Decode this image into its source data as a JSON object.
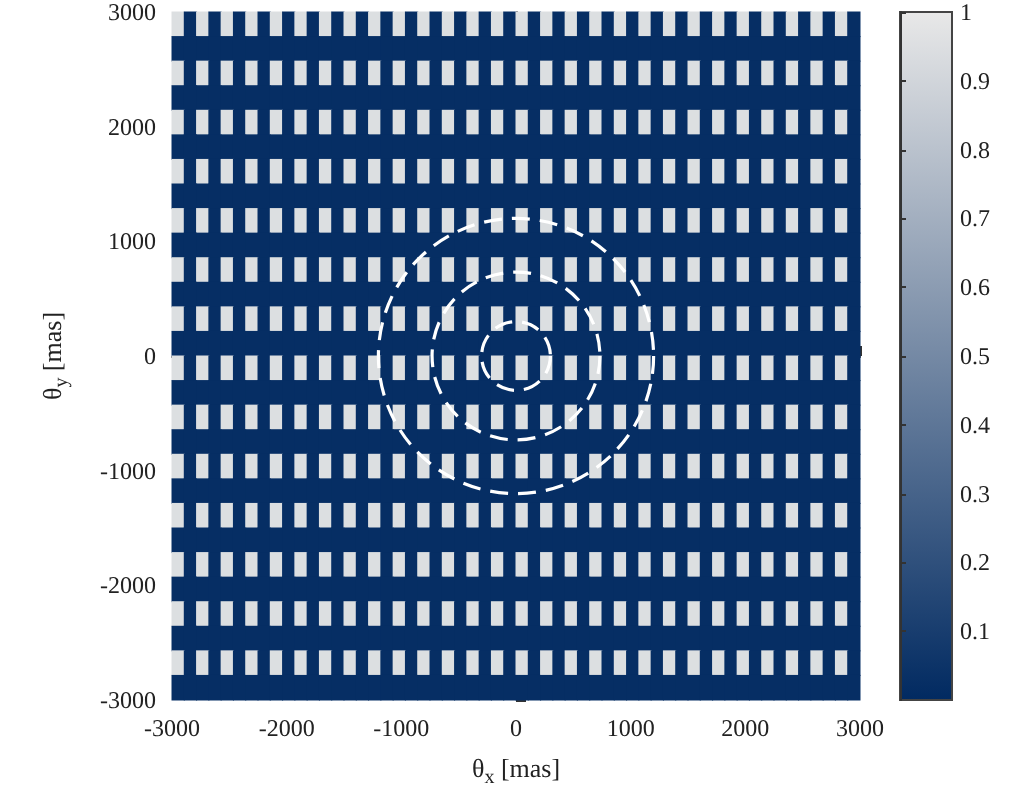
{
  "chart_data": {
    "type": "heatmap",
    "xlabel": "θ$_{x}$ [mas]",
    "ylabel": "θ$_{y}$ [mas]",
    "xlim": [
      -3000,
      3000
    ],
    "ylim": [
      -3000,
      3000
    ],
    "xticks": [
      -3000,
      -2000,
      -1000,
      0,
      1000,
      2000,
      3000
    ],
    "yticks": [
      -3000,
      -2000,
      -1000,
      0,
      1000,
      2000,
      3000
    ],
    "clim": [
      0,
      1
    ],
    "cticks": [
      0.1,
      0.2,
      0.3,
      0.4,
      0.5,
      0.6,
      0.7,
      0.8,
      0.9,
      1
    ],
    "cells": [
      [
        0.95,
        0.02,
        0.95,
        0.02,
        0.95,
        0.02,
        0.95,
        0.02,
        0.95,
        0.02,
        0.95,
        0.02,
        0.95,
        0.02,
        0.95,
        0.02,
        0.95,
        0.02,
        0.95,
        0.02,
        0.95,
        0.02,
        0.95,
        0.02,
        0.95,
        0.02,
        0.95,
        0.02,
        0.95,
        0.02,
        0.95,
        0.02,
        0.95,
        0.02,
        0.95,
        0.02,
        0.95,
        0.02,
        0.95,
        0.02,
        0.95,
        0.02,
        0.95,
        0.02,
        0.95,
        0.02,
        0.95,
        0.02,
        0.95,
        0.02,
        0.95,
        0.02,
        0.95,
        0.02,
        0.95,
        0.02
      ],
      [
        0.02,
        0.02,
        0.02,
        0.02,
        0.02,
        0.02,
        0.02,
        0.02,
        0.02,
        0.02,
        0.02,
        0.02,
        0.02,
        0.02,
        0.02,
        0.02,
        0.02,
        0.02,
        0.02,
        0.02,
        0.02,
        0.02,
        0.02,
        0.02,
        0.02,
        0.02,
        0.02,
        0.02,
        0.02,
        0.02,
        0.02,
        0.02,
        0.02,
        0.02,
        0.02,
        0.02,
        0.02,
        0.02,
        0.02,
        0.02,
        0.02,
        0.02,
        0.02,
        0.02,
        0.02,
        0.02,
        0.02,
        0.02,
        0.02,
        0.02,
        0.02,
        0.02,
        0.02,
        0.02,
        0.02,
        0.02
      ],
      [
        0.95,
        0.02,
        0.95,
        0.02,
        0.95,
        0.02,
        0.95,
        0.02,
        0.95,
        0.02,
        0.95,
        0.02,
        0.95,
        0.02,
        0.95,
        0.02,
        0.95,
        0.02,
        0.95,
        0.02,
        0.95,
        0.02,
        0.95,
        0.02,
        0.95,
        0.02,
        0.95,
        0.02,
        0.95,
        0.02,
        0.95,
        0.02,
        0.95,
        0.02,
        0.95,
        0.02,
        0.95,
        0.02,
        0.95,
        0.02,
        0.95,
        0.02,
        0.95,
        0.02,
        0.95,
        0.02,
        0.95,
        0.02,
        0.95,
        0.02,
        0.95,
        0.02,
        0.95,
        0.02,
        0.95,
        0.02
      ],
      [
        0.02,
        0.02,
        0.02,
        0.02,
        0.02,
        0.02,
        0.02,
        0.02,
        0.02,
        0.02,
        0.02,
        0.02,
        0.02,
        0.02,
        0.02,
        0.02,
        0.02,
        0.02,
        0.02,
        0.02,
        0.02,
        0.02,
        0.02,
        0.02,
        0.02,
        0.02,
        0.02,
        0.02,
        0.02,
        0.02,
        0.02,
        0.02,
        0.02,
        0.02,
        0.02,
        0.02,
        0.02,
        0.02,
        0.02,
        0.02,
        0.02,
        0.02,
        0.02,
        0.02,
        0.02,
        0.02,
        0.02,
        0.02,
        0.02,
        0.02,
        0.02,
        0.02,
        0.02,
        0.02,
        0.02,
        0.02
      ],
      [
        0.95,
        0.02,
        0.95,
        0.02,
        0.95,
        0.02,
        0.95,
        0.02,
        0.95,
        0.02,
        0.95,
        0.02,
        0.95,
        0.02,
        0.95,
        0.02,
        0.95,
        0.02,
        0.95,
        0.02,
        0.95,
        0.02,
        0.95,
        0.02,
        0.95,
        0.02,
        0.95,
        0.02,
        0.95,
        0.02,
        0.95,
        0.02,
        0.95,
        0.02,
        0.95,
        0.02,
        0.95,
        0.02,
        0.95,
        0.02,
        0.95,
        0.02,
        0.95,
        0.02,
        0.95,
        0.02,
        0.95,
        0.02,
        0.95,
        0.02,
        0.95,
        0.02,
        0.95,
        0.02,
        0.95,
        0.02
      ],
      [
        0.02,
        0.02,
        0.02,
        0.02,
        0.02,
        0.02,
        0.02,
        0.02,
        0.02,
        0.02,
        0.02,
        0.02,
        0.02,
        0.02,
        0.02,
        0.02,
        0.02,
        0.02,
        0.02,
        0.02,
        0.02,
        0.02,
        0.02,
        0.02,
        0.02,
        0.02,
        0.02,
        0.02,
        0.02,
        0.02,
        0.02,
        0.02,
        0.02,
        0.02,
        0.02,
        0.02,
        0.02,
        0.02,
        0.02,
        0.02,
        0.02,
        0.02,
        0.02,
        0.02,
        0.02,
        0.02,
        0.02,
        0.02,
        0.02,
        0.02,
        0.02,
        0.02,
        0.02,
        0.02,
        0.02,
        0.02
      ],
      [
        0.95,
        0.02,
        0.95,
        0.02,
        0.95,
        0.02,
        0.95,
        0.02,
        0.95,
        0.02,
        0.95,
        0.02,
        0.95,
        0.02,
        0.95,
        0.02,
        0.95,
        0.02,
        0.95,
        0.02,
        0.95,
        0.02,
        0.95,
        0.02,
        0.95,
        0.02,
        0.95,
        0.02,
        0.95,
        0.02,
        0.95,
        0.02,
        0.95,
        0.02,
        0.95,
        0.02,
        0.95,
        0.02,
        0.95,
        0.02,
        0.95,
        0.02,
        0.95,
        0.02,
        0.95,
        0.02,
        0.95,
        0.02,
        0.95,
        0.02,
        0.95,
        0.02,
        0.95,
        0.02,
        0.95,
        0.02
      ],
      [
        0.02,
        0.02,
        0.02,
        0.02,
        0.02,
        0.02,
        0.02,
        0.02,
        0.02,
        0.02,
        0.02,
        0.02,
        0.02,
        0.02,
        0.02,
        0.02,
        0.02,
        0.02,
        0.02,
        0.02,
        0.02,
        0.02,
        0.02,
        0.02,
        0.02,
        0.02,
        0.02,
        0.02,
        0.02,
        0.02,
        0.02,
        0.02,
        0.02,
        0.02,
        0.02,
        0.02,
        0.02,
        0.02,
        0.02,
        0.02,
        0.02,
        0.02,
        0.02,
        0.02,
        0.02,
        0.02,
        0.02,
        0.02,
        0.02,
        0.02,
        0.02,
        0.02,
        0.02,
        0.02,
        0.02,
        0.02
      ],
      [
        0.95,
        0.02,
        0.95,
        0.02,
        0.95,
        0.02,
        0.95,
        0.02,
        0.95,
        0.02,
        0.95,
        0.02,
        0.95,
        0.02,
        0.95,
        0.02,
        0.95,
        0.02,
        0.95,
        0.02,
        0.95,
        0.02,
        0.95,
        0.02,
        0.95,
        0.02,
        0.95,
        0.02,
        0.95,
        0.02,
        0.95,
        0.02,
        0.95,
        0.02,
        0.95,
        0.02,
        0.95,
        0.02,
        0.95,
        0.02,
        0.95,
        0.02,
        0.95,
        0.02,
        0.95,
        0.02,
        0.95,
        0.02,
        0.95,
        0.02,
        0.95,
        0.02,
        0.95,
        0.02,
        0.95,
        0.02
      ],
      [
        0.02,
        0.02,
        0.02,
        0.02,
        0.02,
        0.02,
        0.02,
        0.02,
        0.02,
        0.02,
        0.02,
        0.02,
        0.02,
        0.02,
        0.02,
        0.02,
        0.02,
        0.02,
        0.02,
        0.02,
        0.02,
        0.02,
        0.02,
        0.02,
        0.02,
        0.02,
        0.02,
        0.02,
        0.02,
        0.02,
        0.02,
        0.02,
        0.02,
        0.02,
        0.02,
        0.02,
        0.02,
        0.02,
        0.02,
        0.02,
        0.02,
        0.02,
        0.02,
        0.02,
        0.02,
        0.02,
        0.02,
        0.02,
        0.02,
        0.02,
        0.02,
        0.02,
        0.02,
        0.02,
        0.02,
        0.02
      ],
      [
        0.95,
        0.02,
        0.95,
        0.02,
        0.95,
        0.02,
        0.95,
        0.02,
        0.95,
        0.02,
        0.95,
        0.02,
        0.95,
        0.02,
        0.95,
        0.02,
        0.95,
        0.02,
        0.95,
        0.02,
        0.95,
        0.02,
        0.95,
        0.02,
        0.95,
        0.02,
        0.95,
        0.02,
        0.95,
        0.02,
        0.95,
        0.02,
        0.95,
        0.02,
        0.95,
        0.02,
        0.95,
        0.02,
        0.95,
        0.02,
        0.95,
        0.02,
        0.95,
        0.02,
        0.95,
        0.02,
        0.95,
        0.02,
        0.95,
        0.02,
        0.95,
        0.02,
        0.95,
        0.02,
        0.95,
        0.02
      ],
      [
        0.02,
        0.02,
        0.02,
        0.02,
        0.02,
        0.02,
        0.02,
        0.02,
        0.02,
        0.02,
        0.02,
        0.02,
        0.02,
        0.02,
        0.02,
        0.02,
        0.02,
        0.02,
        0.02,
        0.02,
        0.02,
        0.02,
        0.02,
        0.02,
        0.02,
        0.02,
        0.02,
        0.02,
        0.02,
        0.02,
        0.02,
        0.02,
        0.02,
        0.02,
        0.02,
        0.02,
        0.02,
        0.02,
        0.02,
        0.02,
        0.02,
        0.02,
        0.02,
        0.02,
        0.02,
        0.02,
        0.02,
        0.02,
        0.02,
        0.02,
        0.02,
        0.02,
        0.02,
        0.02,
        0.02,
        0.02
      ],
      [
        0.95,
        0.02,
        0.95,
        0.02,
        0.95,
        0.02,
        0.95,
        0.02,
        0.95,
        0.02,
        0.95,
        0.02,
        0.95,
        0.02,
        0.95,
        0.02,
        0.95,
        0.02,
        0.95,
        0.02,
        0.95,
        0.02,
        0.95,
        0.02,
        0.95,
        0.02,
        0.95,
        0.02,
        0.95,
        0.02,
        0.95,
        0.02,
        0.95,
        0.02,
        0.95,
        0.02,
        0.95,
        0.02,
        0.95,
        0.02,
        0.95,
        0.02,
        0.95,
        0.02,
        0.95,
        0.02,
        0.95,
        0.02,
        0.95,
        0.02,
        0.95,
        0.02,
        0.95,
        0.02,
        0.95,
        0.02
      ],
      [
        0.02,
        0.02,
        0.02,
        0.02,
        0.02,
        0.02,
        0.02,
        0.02,
        0.02,
        0.02,
        0.02,
        0.02,
        0.02,
        0.02,
        0.02,
        0.02,
        0.02,
        0.02,
        0.02,
        0.02,
        0.02,
        0.02,
        0.02,
        0.02,
        0.02,
        0.02,
        0.02,
        0.02,
        0.02,
        0.02,
        0.02,
        0.02,
        0.02,
        0.02,
        0.02,
        0.02,
        0.02,
        0.02,
        0.02,
        0.02,
        0.02,
        0.02,
        0.02,
        0.02,
        0.02,
        0.02,
        0.02,
        0.02,
        0.02,
        0.02,
        0.02,
        0.02,
        0.02,
        0.02,
        0.02,
        0.02
      ],
      [
        0.95,
        0.02,
        0.95,
        0.02,
        0.95,
        0.02,
        0.95,
        0.02,
        0.95,
        0.02,
        0.95,
        0.02,
        0.95,
        0.02,
        0.95,
        0.02,
        0.95,
        0.02,
        0.95,
        0.02,
        0.95,
        0.02,
        0.95,
        0.02,
        0.95,
        0.02,
        0.95,
        0.02,
        0.95,
        0.02,
        0.95,
        0.02,
        0.95,
        0.02,
        0.95,
        0.02,
        0.95,
        0.02,
        0.95,
        0.02,
        0.95,
        0.02,
        0.95,
        0.02,
        0.95,
        0.02,
        0.95,
        0.02,
        0.95,
        0.02,
        0.95,
        0.02,
        0.95,
        0.02,
        0.95,
        0.02
      ],
      [
        0.02,
        0.02,
        0.02,
        0.02,
        0.02,
        0.02,
        0.02,
        0.02,
        0.02,
        0.02,
        0.02,
        0.02,
        0.02,
        0.02,
        0.02,
        0.02,
        0.02,
        0.02,
        0.02,
        0.02,
        0.02,
        0.02,
        0.02,
        0.02,
        0.02,
        0.02,
        0.02,
        0.02,
        0.02,
        0.02,
        0.02,
        0.02,
        0.02,
        0.02,
        0.02,
        0.02,
        0.02,
        0.02,
        0.02,
        0.02,
        0.02,
        0.02,
        0.02,
        0.02,
        0.02,
        0.02,
        0.02,
        0.02,
        0.02,
        0.02,
        0.02,
        0.02,
        0.02,
        0.02,
        0.02,
        0.02
      ],
      [
        0.95,
        0.02,
        0.95,
        0.02,
        0.95,
        0.02,
        0.95,
        0.02,
        0.95,
        0.02,
        0.95,
        0.02,
        0.95,
        0.02,
        0.95,
        0.02,
        0.95,
        0.02,
        0.95,
        0.02,
        0.95,
        0.02,
        0.95,
        0.02,
        0.95,
        0.02,
        0.95,
        0.02,
        0.95,
        0.02,
        0.95,
        0.02,
        0.95,
        0.02,
        0.95,
        0.02,
        0.95,
        0.02,
        0.95,
        0.02,
        0.95,
        0.02,
        0.95,
        0.02,
        0.95,
        0.02,
        0.95,
        0.02,
        0.95,
        0.02,
        0.95,
        0.02,
        0.95,
        0.02,
        0.95,
        0.02
      ],
      [
        0.02,
        0.02,
        0.02,
        0.02,
        0.02,
        0.02,
        0.02,
        0.02,
        0.02,
        0.02,
        0.02,
        0.02,
        0.02,
        0.02,
        0.02,
        0.02,
        0.02,
        0.02,
        0.02,
        0.02,
        0.02,
        0.02,
        0.02,
        0.02,
        0.02,
        0.02,
        0.02,
        0.02,
        0.02,
        0.02,
        0.02,
        0.02,
        0.02,
        0.02,
        0.02,
        0.02,
        0.02,
        0.02,
        0.02,
        0.02,
        0.02,
        0.02,
        0.02,
        0.02,
        0.02,
        0.02,
        0.02,
        0.02,
        0.02,
        0.02,
        0.02,
        0.02,
        0.02,
        0.02,
        0.02,
        0.02
      ],
      [
        0.95,
        0.02,
        0.95,
        0.02,
        0.95,
        0.02,
        0.95,
        0.02,
        0.95,
        0.02,
        0.95,
        0.02,
        0.95,
        0.02,
        0.95,
        0.02,
        0.95,
        0.02,
        0.95,
        0.02,
        0.95,
        0.02,
        0.95,
        0.02,
        0.95,
        0.02,
        0.95,
        0.02,
        0.95,
        0.02,
        0.95,
        0.02,
        0.95,
        0.02,
        0.95,
        0.02,
        0.95,
        0.02,
        0.95,
        0.02,
        0.95,
        0.02,
        0.95,
        0.02,
        0.95,
        0.02,
        0.95,
        0.02,
        0.95,
        0.02,
        0.95,
        0.02,
        0.95,
        0.02,
        0.95,
        0.02
      ],
      [
        0.02,
        0.02,
        0.02,
        0.02,
        0.02,
        0.02,
        0.02,
        0.02,
        0.02,
        0.02,
        0.02,
        0.02,
        0.02,
        0.02,
        0.02,
        0.02,
        0.02,
        0.02,
        0.02,
        0.02,
        0.02,
        0.02,
        0.02,
        0.02,
        0.02,
        0.02,
        0.02,
        0.02,
        0.02,
        0.02,
        0.02,
        0.02,
        0.02,
        0.02,
        0.02,
        0.02,
        0.02,
        0.02,
        0.02,
        0.02,
        0.02,
        0.02,
        0.02,
        0.02,
        0.02,
        0.02,
        0.02,
        0.02,
        0.02,
        0.02,
        0.02,
        0.02,
        0.02,
        0.02,
        0.02,
        0.02
      ],
      [
        0.95,
        0.02,
        0.95,
        0.02,
        0.95,
        0.02,
        0.95,
        0.02,
        0.95,
        0.02,
        0.95,
        0.02,
        0.95,
        0.02,
        0.95,
        0.02,
        0.95,
        0.02,
        0.95,
        0.02,
        0.95,
        0.02,
        0.95,
        0.02,
        0.95,
        0.02,
        0.95,
        0.02,
        0.95,
        0.02,
        0.95,
        0.02,
        0.95,
        0.02,
        0.95,
        0.02,
        0.95,
        0.02,
        0.95,
        0.02,
        0.95,
        0.02,
        0.95,
        0.02,
        0.95,
        0.02,
        0.95,
        0.02,
        0.95,
        0.02,
        0.95,
        0.02,
        0.95,
        0.02,
        0.95,
        0.02
      ],
      [
        0.02,
        0.02,
        0.02,
        0.02,
        0.02,
        0.02,
        0.02,
        0.02,
        0.02,
        0.02,
        0.02,
        0.02,
        0.02,
        0.02,
        0.02,
        0.02,
        0.02,
        0.02,
        0.02,
        0.02,
        0.02,
        0.02,
        0.02,
        0.02,
        0.02,
        0.02,
        0.02,
        0.02,
        0.02,
        0.02,
        0.02,
        0.02,
        0.02,
        0.02,
        0.02,
        0.02,
        0.02,
        0.02,
        0.02,
        0.02,
        0.02,
        0.02,
        0.02,
        0.02,
        0.02,
        0.02,
        0.02,
        0.02,
        0.02,
        0.02,
        0.02,
        0.02,
        0.02,
        0.02,
        0.02,
        0.02
      ],
      [
        0.95,
        0.02,
        0.95,
        0.02,
        0.95,
        0.02,
        0.95,
        0.02,
        0.95,
        0.02,
        0.95,
        0.02,
        0.95,
        0.02,
        0.95,
        0.02,
        0.95,
        0.02,
        0.95,
        0.02,
        0.95,
        0.02,
        0.95,
        0.02,
        0.95,
        0.02,
        0.95,
        0.02,
        0.95,
        0.02,
        0.95,
        0.02,
        0.95,
        0.02,
        0.95,
        0.02,
        0.95,
        0.02,
        0.95,
        0.02,
        0.95,
        0.02,
        0.95,
        0.02,
        0.95,
        0.02,
        0.95,
        0.02,
        0.95,
        0.02,
        0.95,
        0.02,
        0.95,
        0.02,
        0.95,
        0.02
      ],
      [
        0.02,
        0.02,
        0.02,
        0.02,
        0.02,
        0.02,
        0.02,
        0.02,
        0.02,
        0.02,
        0.02,
        0.02,
        0.02,
        0.02,
        0.02,
        0.02,
        0.02,
        0.02,
        0.02,
        0.02,
        0.02,
        0.02,
        0.02,
        0.02,
        0.02,
        0.02,
        0.02,
        0.02,
        0.02,
        0.02,
        0.02,
        0.02,
        0.02,
        0.02,
        0.02,
        0.02,
        0.02,
        0.02,
        0.02,
        0.02,
        0.02,
        0.02,
        0.02,
        0.02,
        0.02,
        0.02,
        0.02,
        0.02,
        0.02,
        0.02,
        0.02,
        0.02,
        0.02,
        0.02,
        0.02,
        0.02
      ],
      [
        0.95,
        0.02,
        0.95,
        0.02,
        0.95,
        0.02,
        0.95,
        0.02,
        0.95,
        0.02,
        0.95,
        0.02,
        0.95,
        0.02,
        0.95,
        0.02,
        0.95,
        0.02,
        0.95,
        0.02,
        0.95,
        0.02,
        0.95,
        0.02,
        0.95,
        0.02,
        0.95,
        0.02,
        0.95,
        0.02,
        0.95,
        0.02,
        0.95,
        0.02,
        0.95,
        0.02,
        0.95,
        0.02,
        0.95,
        0.02,
        0.95,
        0.02,
        0.95,
        0.02,
        0.95,
        0.02,
        0.95,
        0.02,
        0.95,
        0.02,
        0.95,
        0.02,
        0.95,
        0.02,
        0.95,
        0.02
      ],
      [
        0.02,
        0.02,
        0.02,
        0.02,
        0.02,
        0.02,
        0.02,
        0.02,
        0.02,
        0.02,
        0.02,
        0.02,
        0.02,
        0.02,
        0.02,
        0.02,
        0.02,
        0.02,
        0.02,
        0.02,
        0.02,
        0.02,
        0.02,
        0.02,
        0.02,
        0.02,
        0.02,
        0.02,
        0.02,
        0.02,
        0.02,
        0.02,
        0.02,
        0.02,
        0.02,
        0.02,
        0.02,
        0.02,
        0.02,
        0.02,
        0.02,
        0.02,
        0.02,
        0.02,
        0.02,
        0.02,
        0.02,
        0.02,
        0.02,
        0.02,
        0.02,
        0.02,
        0.02,
        0.02,
        0.02,
        0.02
      ],
      [
        0.95,
        0.02,
        0.95,
        0.02,
        0.95,
        0.02,
        0.95,
        0.02,
        0.95,
        0.02,
        0.95,
        0.02,
        0.95,
        0.02,
        0.95,
        0.02,
        0.95,
        0.02,
        0.95,
        0.02,
        0.95,
        0.02,
        0.95,
        0.02,
        0.95,
        0.02,
        0.95,
        0.02,
        0.95,
        0.02,
        0.95,
        0.02,
        0.95,
        0.02,
        0.95,
        0.02,
        0.95,
        0.02,
        0.95,
        0.02,
        0.95,
        0.02,
        0.95,
        0.02,
        0.95,
        0.02,
        0.95,
        0.02,
        0.95,
        0.02,
        0.95,
        0.02,
        0.95,
        0.02,
        0.95,
        0.02
      ],
      [
        0.02,
        0.02,
        0.02,
        0.02,
        0.02,
        0.02,
        0.02,
        0.02,
        0.02,
        0.02,
        0.02,
        0.02,
        0.02,
        0.02,
        0.02,
        0.02,
        0.02,
        0.02,
        0.02,
        0.02,
        0.02,
        0.02,
        0.02,
        0.02,
        0.02,
        0.02,
        0.02,
        0.02,
        0.02,
        0.02,
        0.02,
        0.02,
        0.02,
        0.02,
        0.02,
        0.02,
        0.02,
        0.02,
        0.02,
        0.02,
        0.02,
        0.02,
        0.02,
        0.02,
        0.02,
        0.02,
        0.02,
        0.02,
        0.02,
        0.02,
        0.02,
        0.02,
        0.02,
        0.02,
        0.02,
        0.02
      ]
    ]
  }
}
